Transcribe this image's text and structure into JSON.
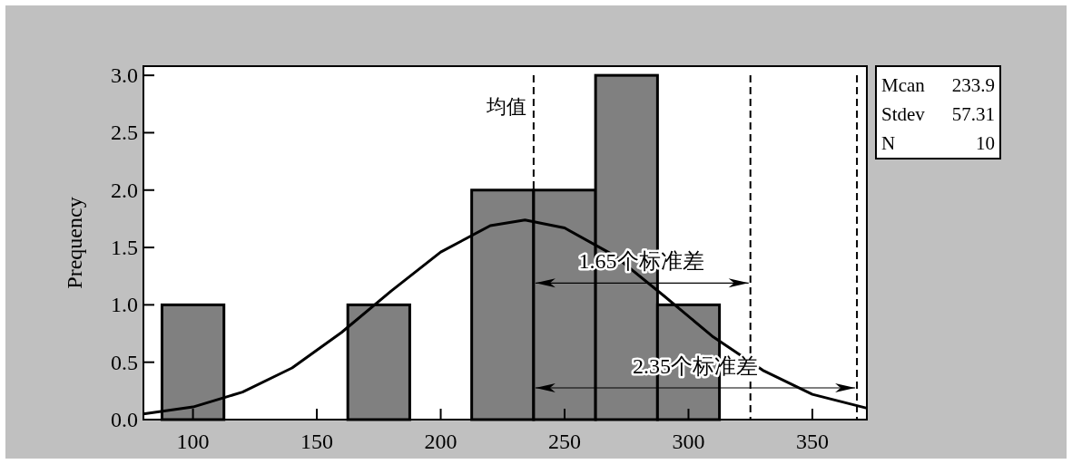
{
  "chart_data": {
    "type": "histogram",
    "ylabel": "Prequency",
    "series": [
      {
        "bins": [
          87.5,
          112.5,
          137.5,
          162.5,
          187.5,
          212.5,
          237.5,
          262.5,
          287.5,
          312.5
        ],
        "values": [
          1,
          0,
          0,
          1,
          0,
          2,
          2,
          3,
          1
        ],
        "color": "#808080"
      },
      {
        "type": "line",
        "x": [
          80,
          100,
          120,
          140,
          160,
          180,
          200,
          220,
          234,
          250,
          270,
          290,
          310,
          330,
          350,
          372
        ],
        "values": [
          0.05,
          0.11,
          0.24,
          0.45,
          0.76,
          1.12,
          1.46,
          1.69,
          1.74,
          1.67,
          1.43,
          1.08,
          0.72,
          0.43,
          0.22,
          0.1
        ],
        "color": "#000000"
      }
    ],
    "xlim": [
      80,
      372
    ],
    "ylim": [
      0,
      3.08
    ],
    "xticks": [
      100,
      150,
      200,
      250,
      300,
      350
    ],
    "yticks": [
      {
        "value": 0,
        "label": "0.0"
      },
      {
        "value": 0.5,
        "label": "0.5"
      },
      {
        "value": 1,
        "label": "1.0"
      },
      {
        "value": 1.5,
        "label": "1.5"
      },
      {
        "value": 2,
        "label": "2.0"
      },
      {
        "value": 2.5,
        "label": "2.5"
      },
      {
        "value": 3,
        "label": "3.0"
      }
    ],
    "ref_lines": [
      {
        "axis": "x",
        "value": 237.5,
        "label": "均值",
        "line_style": "dashed",
        "color": "#000000"
      },
      {
        "axis": "x",
        "value": 325,
        "line_style": "dashed",
        "color": "#000000"
      },
      {
        "axis": "x",
        "value": 368,
        "line_style": "dashed",
        "color": "#000000"
      }
    ],
    "annotations": [
      {
        "text": "1.65个标准差",
        "x": 281,
        "y": 1.19
      },
      "2.35个标准差",
      "Mcan 233.9",
      "Stdev 57.31",
      "N 10"
    ]
  }
}
